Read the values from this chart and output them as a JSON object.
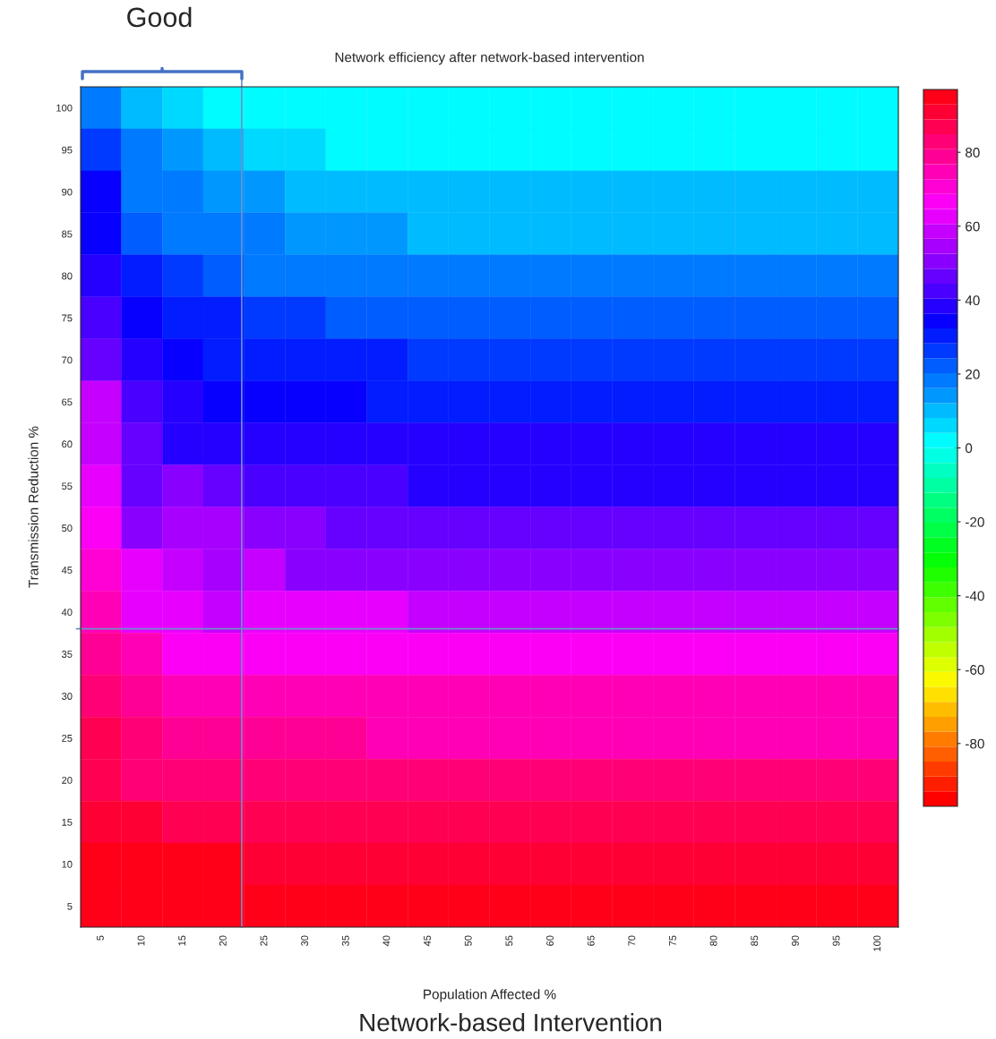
{
  "chart_data": {
    "type": "heatmap",
    "title": "Network efficiency after network-based intervention",
    "xlabel": "Population Affected %",
    "ylabel": "Transmission Reduction %",
    "categories": [
      "5",
      "10",
      "15",
      "20",
      "25",
      "30",
      "35",
      "40",
      "45",
      "50",
      "55",
      "60",
      "65",
      "70",
      "75",
      "80",
      "85",
      "90",
      "95",
      "100"
    ],
    "y_categories": [
      "100",
      "95",
      "90",
      "85",
      "80",
      "75",
      "70",
      "65",
      "60",
      "55",
      "50",
      "45",
      "40",
      "35",
      "30",
      "25",
      "20",
      "15",
      "10",
      "5"
    ],
    "cells": [
      [
        18,
        10,
        7,
        4,
        0,
        0,
        0,
        0,
        0,
        0,
        0,
        0,
        0,
        0,
        0,
        0,
        0,
        0,
        0,
        0
      ],
      [
        26,
        17,
        14,
        10,
        6,
        6,
        4,
        4,
        4,
        4,
        4,
        4,
        4,
        4,
        4,
        4,
        4,
        4,
        4,
        4
      ],
      [
        33,
        19,
        18,
        15,
        13,
        9,
        9,
        9,
        9,
        9,
        9,
        9,
        9,
        9,
        9,
        9,
        9,
        9,
        9,
        9
      ],
      [
        36,
        24,
        19,
        17,
        17,
        14,
        14,
        14,
        12,
        12,
        12,
        12,
        12,
        12,
        12,
        12,
        12,
        12,
        12,
        12
      ],
      [
        40,
        31,
        26,
        22,
        20,
        20,
        19,
        19,
        19,
        19,
        19,
        19,
        19,
        19,
        19,
        19,
        19,
        19,
        19,
        19
      ],
      [
        43,
        34,
        32,
        29,
        25,
        25,
        24,
        24,
        24,
        24,
        24,
        24,
        24,
        24,
        24,
        24,
        24,
        24,
        24,
        24
      ],
      [
        48,
        38,
        35,
        31,
        31,
        30,
        30,
        30,
        27,
        27,
        27,
        27,
        27,
        27,
        27,
        27,
        27,
        27,
        27,
        27
      ],
      [
        57,
        41,
        39,
        36,
        34,
        34,
        34,
        31,
        31,
        31,
        31,
        31,
        31,
        31,
        31,
        31,
        31,
        31,
        31,
        31
      ],
      [
        60,
        45,
        40,
        40,
        38,
        37,
        37,
        37,
        37,
        37,
        37,
        37,
        37,
        37,
        37,
        37,
        37,
        37,
        37,
        37
      ],
      [
        63,
        48,
        50,
        46,
        43,
        43,
        43,
        43,
        40,
        40,
        40,
        40,
        40,
        40,
        40,
        40,
        40,
        40,
        40,
        40
      ],
      [
        66,
        52,
        53,
        53,
        50,
        50,
        48,
        48,
        48,
        48,
        48,
        48,
        48,
        48,
        48,
        48,
        48,
        48,
        48,
        48
      ],
      [
        71,
        63,
        60,
        55,
        58,
        52,
        52,
        52,
        52,
        52,
        52,
        52,
        52,
        52,
        52,
        52,
        52,
        52,
        52,
        52
      ],
      [
        76,
        64,
        64,
        59,
        61,
        61,
        61,
        61,
        57,
        57,
        57,
        57,
        57,
        57,
        57,
        57,
        57,
        57,
        57,
        57
      ],
      [
        80,
        73,
        68,
        68,
        68,
        66,
        66,
        66,
        66,
        66,
        66,
        66,
        66,
        66,
        66,
        66,
        66,
        66,
        66,
        66
      ],
      [
        84,
        80,
        75,
        75,
        75,
        73,
        73,
        73,
        73,
        73,
        73,
        73,
        73,
        73,
        73,
        73,
        73,
        73,
        73,
        73
      ],
      [
        86,
        82,
        78,
        78,
        78,
        78,
        78,
        75,
        75,
        75,
        75,
        75,
        75,
        75,
        75,
        75,
        75,
        75,
        75,
        75
      ],
      [
        88,
        84,
        84,
        84,
        84,
        84,
        84,
        84,
        84,
        84,
        84,
        84,
        84,
        84,
        84,
        84,
        84,
        84,
        84,
        84
      ],
      [
        90,
        90,
        88,
        88,
        88,
        88,
        88,
        88,
        88,
        88,
        88,
        88,
        88,
        88,
        88,
        88,
        88,
        88,
        88,
        88
      ],
      [
        93,
        93,
        93,
        93,
        91,
        91,
        91,
        91,
        91,
        91,
        91,
        91,
        91,
        91,
        91,
        91,
        91,
        91,
        91,
        91
      ],
      [
        95,
        95,
        95,
        95,
        95,
        95,
        95,
        95,
        95,
        95,
        95,
        95,
        95,
        95,
        95,
        95,
        95,
        95,
        95,
        95
      ]
    ],
    "clim": [
      -97,
      97
    ],
    "cticks": [
      -80,
      -60,
      -40,
      -20,
      0,
      20,
      40,
      60,
      80
    ],
    "annotations": [
      "Good",
      "Network-based Intervention"
    ]
  }
}
